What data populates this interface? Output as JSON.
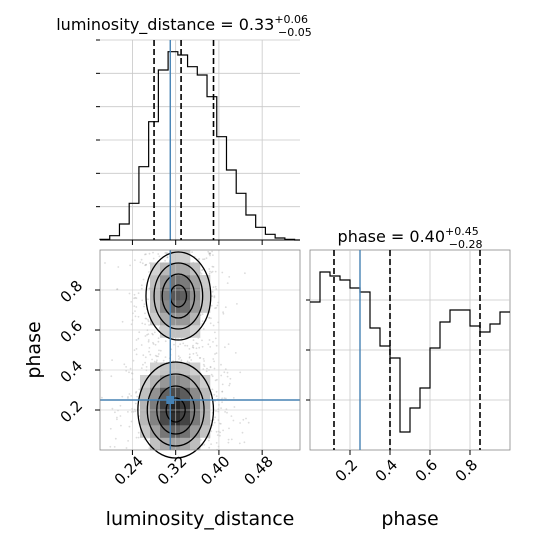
{
  "chart_data": [
    {
      "type": "histogram",
      "panel": "luminosity_distance marginal",
      "title": {
        "prefix": "luminosity_distance = ",
        "value": "0.33",
        "plus": "+0.06",
        "minus": "−0.05"
      },
      "xlim": [
        0.18,
        0.55
      ],
      "bins": [
        0.18,
        0.198,
        0.216,
        0.234,
        0.252,
        0.27,
        0.288,
        0.306,
        0.324,
        0.342,
        0.36,
        0.378,
        0.396,
        0.414,
        0.432,
        0.45,
        0.468,
        0.486,
        0.504,
        0.522,
        0.54
      ],
      "values": [
        0.2,
        1.3,
        4.8,
        11.0,
        22.0,
        35.5,
        51.0,
        56.5,
        55.5,
        52.0,
        49.5,
        43.0,
        31.0,
        21.0,
        14.0,
        7.5,
        3.8,
        1.7,
        0.6,
        0.2
      ],
      "ylim": [
        0,
        60
      ],
      "quantile_lines": [
        0.28,
        0.33,
        0.39
      ],
      "truth": 0.31
    },
    {
      "type": "histogram",
      "panel": "phase marginal",
      "title": {
        "prefix": "phase = ",
        "value": "0.40",
        "plus": "+0.45",
        "minus": "−0.28"
      },
      "xlim": [
        0.0,
        1.0
      ],
      "bins": [
        0.0,
        0.05,
        0.1,
        0.15,
        0.2,
        0.25,
        0.3,
        0.35,
        0.4,
        0.45,
        0.5,
        0.55,
        0.6,
        0.65,
        0.7,
        0.75,
        0.8,
        0.85,
        0.9,
        0.95,
        1.0
      ],
      "values": [
        0.74,
        0.89,
        0.87,
        0.85,
        0.81,
        0.79,
        0.61,
        0.52,
        0.46,
        0.09,
        0.21,
        0.31,
        0.51,
        0.64,
        0.7,
        0.7,
        0.62,
        0.59,
        0.63,
        0.69
      ],
      "ylim": [
        0,
        1
      ],
      "quantile_lines": [
        0.12,
        0.4,
        0.85
      ],
      "truth": 0.25,
      "xticks": [
        "0.2",
        "0.4",
        "0.6",
        "0.8"
      ],
      "xlabel": "phase"
    },
    {
      "type": "heatmap",
      "panel": "luminosity_distance vs phase 2D posterior",
      "xlabel": "luminosity_distance",
      "ylabel": "phase",
      "xlim": [
        0.18,
        0.55
      ],
      "ylim": [
        0.0,
        1.0
      ],
      "xticks": [
        "0.24",
        "0.32",
        "0.40",
        "0.48"
      ],
      "yticks": [
        "0.2",
        "0.4",
        "0.6",
        "0.8"
      ],
      "truth": {
        "x": 0.31,
        "y": 0.25
      },
      "modes": [
        {
          "x": 0.325,
          "y": 0.77,
          "sx": 0.03,
          "sy": 0.11,
          "w": 0.75
        },
        {
          "x": 0.32,
          "y": 0.2,
          "sx": 0.035,
          "sy": 0.12,
          "w": 1.0
        }
      ]
    }
  ]
}
